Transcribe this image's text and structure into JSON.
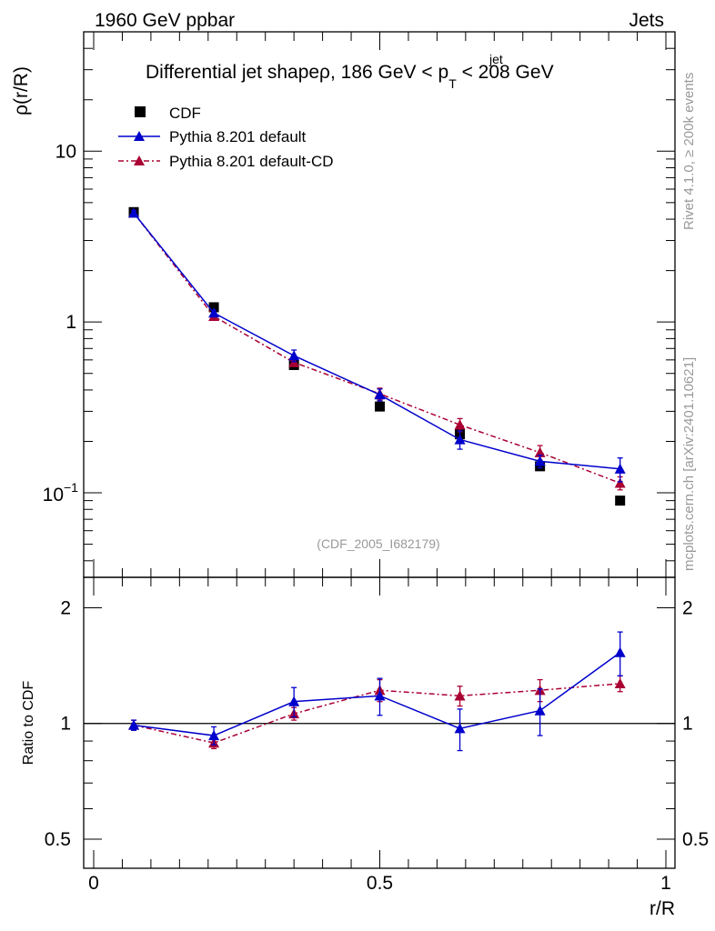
{
  "header": {
    "left": "1960 GeV ppbar",
    "right": "Jets",
    "side_rivet": "Rivet 4.1.0, ≥ 200k events",
    "side_mcplots": "mcplots.cern.ch [arXiv:2401.10621]"
  },
  "colors": {
    "cdf": "#000000",
    "default": "#0000cc",
    "default_cd": "#aa0033",
    "watermark": "#999999"
  },
  "chart_data": [
    {
      "type": "scatter",
      "panel": "main",
      "title_prefix": "Differential jet shapeρ, 186 GeV < p",
      "title_sup": "jet",
      "title_sub": "T",
      "title_suffix": " < 208 GeV",
      "ylabel": "ρ(r/R)",
      "yscale": "log",
      "ylim": [
        0.032,
        50
      ],
      "xlim": [
        0,
        1
      ],
      "ytick_labels": [
        "10",
        "1"
      ],
      "ytick_minus1_base": "10",
      "ytick_minus1_exp": "−1",
      "watermark": "(CDF_2005_I682179)",
      "legend": [
        "CDF",
        "Pythia 8.201 default",
        "Pythia 8.201 default-CD"
      ],
      "x": [
        0.07,
        0.21,
        0.35,
        0.5,
        0.64,
        0.78,
        0.92
      ],
      "series": [
        {
          "name": "CDF",
          "values": [
            4.4,
            1.22,
            0.56,
            0.32,
            0.22,
            0.143,
            0.09
          ],
          "err": [
            0,
            0,
            0,
            0,
            0,
            0,
            0
          ]
        },
        {
          "name": "Pythia 8.201 default",
          "values": [
            4.35,
            1.13,
            0.635,
            0.375,
            0.205,
            0.153,
            0.138
          ],
          "err": [
            0.15,
            0.04,
            0.05,
            0.03,
            0.025,
            0.013,
            0.022
          ]
        },
        {
          "name": "Pythia 8.201 default-CD",
          "values": [
            4.35,
            1.08,
            0.58,
            0.38,
            0.25,
            0.172,
            0.114
          ],
          "err": [
            0.15,
            0.04,
            0.03,
            0.03,
            0.022,
            0.017,
            0.01
          ]
        }
      ]
    },
    {
      "type": "scatter",
      "panel": "ratio",
      "ylabel": "Ratio to CDF",
      "xlabel": "r/R",
      "yscale": "log",
      "ylim": [
        0.42,
        2.4
      ],
      "xlim": [
        0,
        1
      ],
      "ytick_labels": [
        "2",
        "1",
        "0.5"
      ],
      "xtick_labels": [
        "0",
        "0.5",
        "1"
      ],
      "x": [
        0.07,
        0.21,
        0.35,
        0.5,
        0.64,
        0.78,
        0.92
      ],
      "series": [
        {
          "name": "Pythia 8.201 default",
          "values": [
            0.99,
            0.93,
            1.14,
            1.18,
            0.97,
            1.08,
            1.53
          ],
          "err": [
            0.03,
            0.05,
            0.1,
            0.13,
            0.12,
            0.15,
            0.2
          ]
        },
        {
          "name": "Pythia 8.201 default-CD",
          "values": [
            0.99,
            0.89,
            1.06,
            1.22,
            1.18,
            1.22,
            1.27
          ],
          "err": [
            0.03,
            0.03,
            0.04,
            0.08,
            0.07,
            0.08,
            0.06
          ]
        }
      ]
    }
  ]
}
